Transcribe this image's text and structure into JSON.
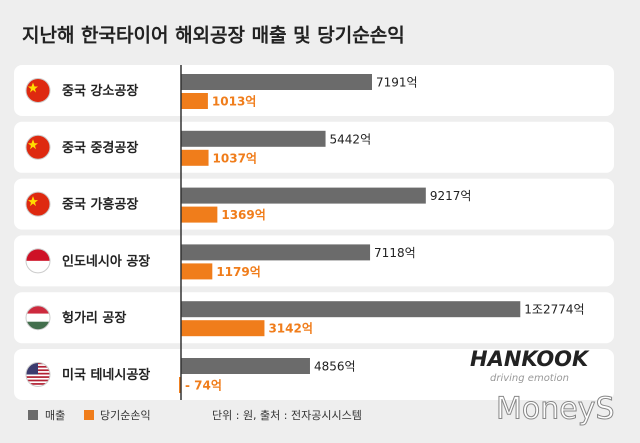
{
  "chart_data": {
    "type": "bar",
    "orientation": "horizontal",
    "title": "지난해 한국타이어 해외공장 매출 및 당기순손익",
    "categories": [
      "중국 강소공장",
      "중국 중경공장",
      "중국 가흥공장",
      "인도네시아 공장",
      "헝가리 공장",
      "미국 테네시공장"
    ],
    "series": [
      {
        "name": "매출",
        "color": "#6b6b6b",
        "values": [
          7191,
          5442,
          9217,
          7118,
          12774,
          4856
        ],
        "value_labels": [
          "7191억",
          "5442억",
          "9217억",
          "7118억",
          "1조2774억",
          "4856억"
        ]
      },
      {
        "name": "당기순손익",
        "color": "#f07d1b",
        "values": [
          1013,
          1037,
          1369,
          1179,
          3142,
          -74
        ],
        "value_labels": [
          "1013억",
          "1037억",
          "1369억",
          "1179억",
          "3142억",
          "- 74억"
        ]
      }
    ],
    "unit_note": "단위 : 원, 출처 : 전자공시시스템",
    "brand": "HANKOOK",
    "tagline": "driving emotion",
    "watermark": "MoneyS"
  }
}
